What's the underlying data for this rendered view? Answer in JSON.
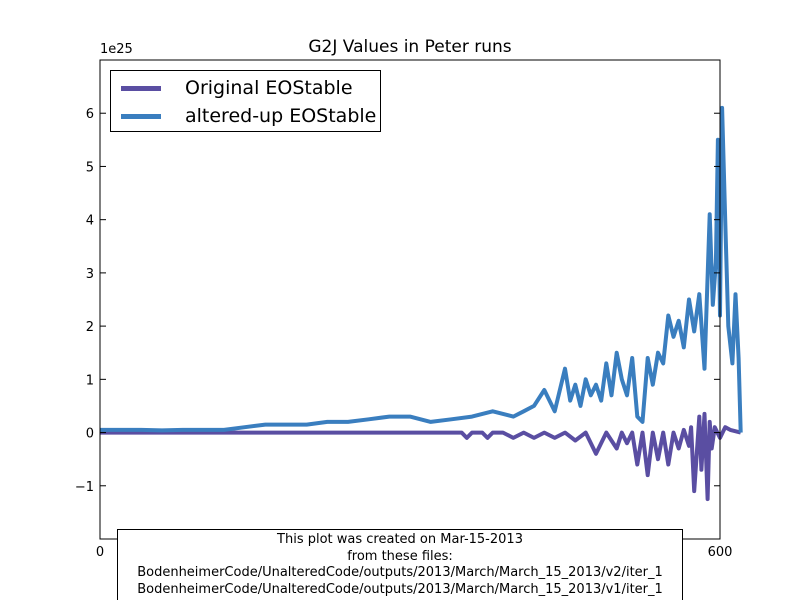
{
  "chart_data": {
    "type": "line",
    "title": "G2J Values in Peter runs",
    "xlabel": "",
    "ylabel": "",
    "offset_text": "1e25",
    "xlim": [
      0,
      600
    ],
    "ylim": [
      -2,
      7
    ],
    "x_tick_labels": [
      "0",
      "600"
    ],
    "y_ticks": [
      -1,
      0,
      1,
      2,
      3,
      4,
      5,
      6
    ],
    "y_tick_labels": [
      "−1",
      "0",
      "1",
      "2",
      "3",
      "4",
      "5",
      "6"
    ],
    "grid": false,
    "legend_position": "upper left",
    "series": [
      {
        "name": "Original EOStable",
        "color": "#5a4ea2",
        "x": [
          0,
          100,
          200,
          300,
          350,
          355,
          360,
          370,
          375,
          380,
          390,
          400,
          410,
          420,
          430,
          440,
          450,
          460,
          470,
          480,
          490,
          500,
          505,
          510,
          515,
          520,
          525,
          530,
          535,
          540,
          545,
          550,
          555,
          560,
          565,
          570,
          572,
          575,
          580,
          582,
          585,
          588,
          590,
          592,
          595,
          600,
          605,
          610,
          620
        ],
        "y": [
          0.0,
          0.0,
          0.0,
          0.0,
          0.0,
          -0.1,
          0.0,
          0.0,
          -0.1,
          0.0,
          0.0,
          -0.1,
          0.0,
          -0.1,
          0.0,
          -0.1,
          0.0,
          -0.15,
          0.0,
          -0.4,
          0.0,
          -0.3,
          0.0,
          -0.2,
          0.0,
          -0.6,
          0.0,
          -0.8,
          0.0,
          -0.5,
          0.0,
          -0.6,
          0.0,
          -0.3,
          0.05,
          -0.25,
          0.1,
          -1.1,
          0.3,
          -0.7,
          0.35,
          -1.25,
          0.2,
          -0.3,
          0.1,
          -0.1,
          0.1,
          0.05,
          0.0
        ]
      },
      {
        "name": "altered-up EOStable",
        "color": "#3a7ebf",
        "x": [
          0,
          20,
          40,
          60,
          80,
          100,
          120,
          140,
          160,
          180,
          200,
          220,
          240,
          260,
          280,
          300,
          320,
          340,
          360,
          380,
          400,
          410,
          420,
          430,
          440,
          450,
          455,
          460,
          465,
          470,
          475,
          480,
          485,
          490,
          495,
          500,
          505,
          510,
          515,
          520,
          525,
          530,
          535,
          540,
          545,
          550,
          555,
          560,
          565,
          570,
          575,
          580,
          585,
          590,
          593,
          596,
          598,
          600,
          602,
          605,
          608,
          612,
          615,
          618,
          620
        ],
        "y": [
          0.05,
          0.05,
          0.05,
          0.04,
          0.05,
          0.05,
          0.05,
          0.1,
          0.15,
          0.15,
          0.15,
          0.2,
          0.2,
          0.25,
          0.3,
          0.3,
          0.2,
          0.25,
          0.3,
          0.4,
          0.3,
          0.4,
          0.5,
          0.8,
          0.4,
          1.2,
          0.6,
          0.9,
          0.5,
          1.0,
          0.7,
          0.9,
          0.6,
          1.3,
          0.7,
          1.5,
          1.0,
          0.7,
          1.4,
          0.3,
          0.2,
          1.4,
          0.9,
          1.5,
          1.3,
          2.2,
          1.8,
          2.1,
          1.6,
          2.5,
          1.9,
          2.6,
          1.2,
          4.1,
          2.4,
          3.2,
          5.5,
          2.2,
          6.1,
          4.0,
          2.0,
          1.3,
          2.6,
          1.4,
          0.0
        ]
      }
    ]
  },
  "legend": {
    "items": [
      {
        "label": "Original EOStable",
        "color": "#5a4ea2"
      },
      {
        "label": "altered-up EOStable",
        "color": "#3a7ebf"
      }
    ]
  },
  "footnote": {
    "line1": "This plot was created on Mar-15-2013",
    "line2": "from these files:",
    "line3": "BodenheimerCode/UnalteredCode/outputs/2013/March/March_15_2013/v2/iter_1",
    "line4": "BodenheimerCode/UnalteredCode/outputs/2013/March/March_15_2013/v1/iter_1"
  }
}
